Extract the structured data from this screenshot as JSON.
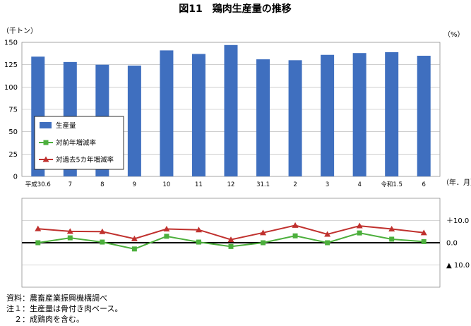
{
  "title": "図11　鶏肉生産量の推移",
  "left_unit": "（千トン）",
  "right_unit": "（%）",
  "x_unit": "（年．月）",
  "chart_data": [
    {
      "type": "bar",
      "categories": [
        "平成30.6",
        "7",
        "8",
        "9",
        "10",
        "11",
        "12",
        "31.1",
        "2",
        "3",
        "4",
        "令和1.5",
        "6"
      ],
      "series": [
        {
          "name": "生産量",
          "values": [
            134,
            128,
            125,
            124,
            141,
            137,
            147,
            131,
            130,
            136,
            138,
            139,
            135
          ],
          "color": "#3F6FBF"
        }
      ],
      "ylim": [
        0,
        150
      ],
      "yticks": [
        0,
        25,
        50,
        75,
        100,
        125,
        150
      ],
      "grid": true,
      "legend": "left-middle"
    },
    {
      "type": "line",
      "categories": [
        "平成30.6",
        "7",
        "8",
        "9",
        "10",
        "11",
        "12",
        "31.1",
        "2",
        "3",
        "4",
        "令和1.5",
        "6"
      ],
      "series": [
        {
          "name": "対前年増減率",
          "values": [
            0.0,
            2.2,
            0.3,
            -2.8,
            2.9,
            0.3,
            -1.7,
            0.0,
            3.1,
            0.0,
            4.4,
            1.6,
            0.5
          ],
          "color": "#4CAF3C"
        },
        {
          "name": "対過去5カ年増減率",
          "values": [
            6.3,
            5.1,
            5.0,
            1.8,
            6.2,
            5.8,
            1.4,
            4.5,
            7.8,
            3.8,
            7.6,
            6.2,
            4.5
          ],
          "color": "#C0312E"
        }
      ],
      "ylim": [
        -20,
        20
      ],
      "yticks": [
        {
          "value": 10,
          "label": "＋10.0"
        },
        {
          "value": 0,
          "label": "0.0"
        },
        {
          "value": -10,
          "label": "▲ 10.0"
        }
      ],
      "grid": true
    }
  ],
  "notes": [
    "資料：農畜産業振興機構調べ",
    "注１：生産量は骨付き肉ベース。",
    "　２：成鶏肉を含む。"
  ]
}
